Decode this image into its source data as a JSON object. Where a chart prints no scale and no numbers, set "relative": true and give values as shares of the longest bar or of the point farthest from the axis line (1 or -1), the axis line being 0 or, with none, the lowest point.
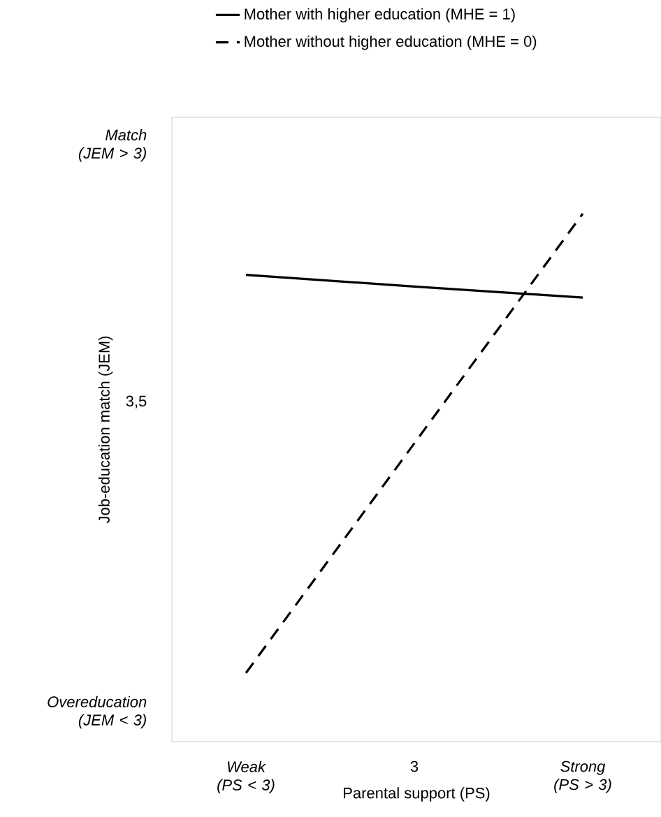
{
  "chart_data": {
    "type": "line",
    "relative": true,
    "xlabel": "Parental support (PS)",
    "ylabel": "Job-education match (JEM)",
    "categories": [
      "Weak (PS < 3)",
      "3",
      "Strong (PS > 3)"
    ],
    "series": [
      {
        "name": "Mother with higher education (MHE = 1)",
        "color": "#000000",
        "line_style": "solid",
        "values": [
          0.884,
          0.862,
          0.841
        ]
      },
      {
        "name": "Mother without higher education (MHE = 0)",
        "color": "#000000",
        "line_style": "dashed",
        "values": [
          0.13,
          0.565,
          1
        ]
      }
    ],
    "annotations": [
      "Match (JEM > 3)",
      "3,5",
      "Overeducation (JEM < 3)"
    ],
    "legend": "top",
    "marker": "none",
    "grid": false
  }
}
